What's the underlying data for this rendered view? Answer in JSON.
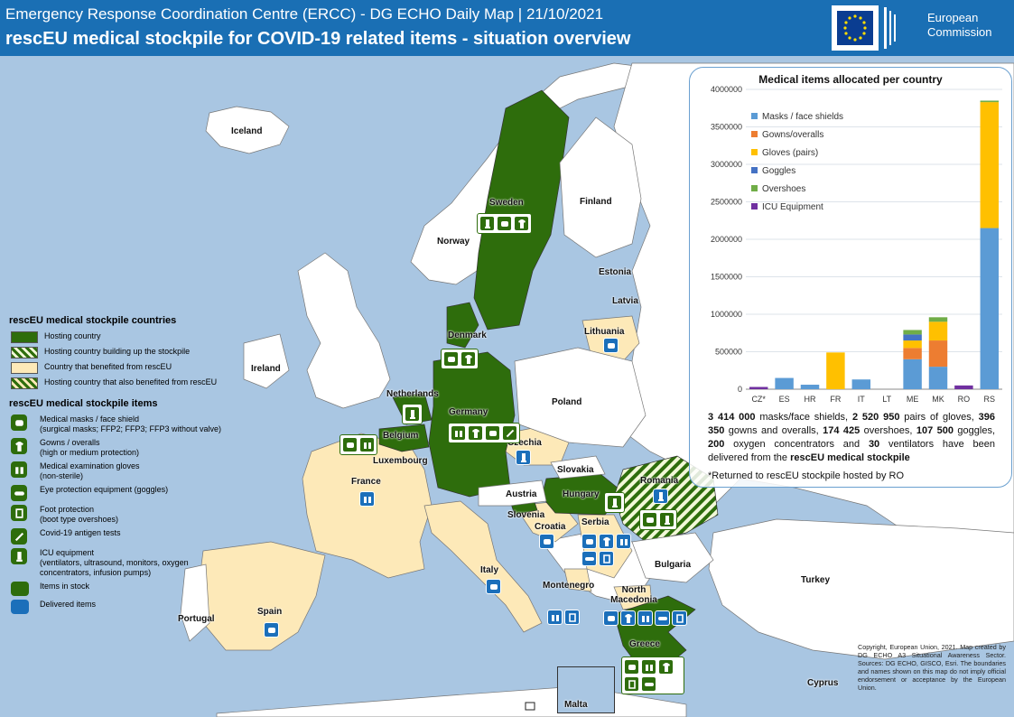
{
  "header": {
    "title": "Emergency Response Coordination Centre (ERCC) - DG ECHO Daily Map | 21/10/2021",
    "subtitle": "rescEU medical stockpile for COVID-19 related items - situation overview",
    "logo_line1": "European",
    "logo_line2": "Commission"
  },
  "colors": {
    "header_bg": "#1a6fb4",
    "sea": "#a9c6e2",
    "hosting": "#2e6d0c",
    "benefited": "#fde9b8",
    "in_stock": "#2e6d0c",
    "delivered": "#1b6fba",
    "non_eu": "#ffffff"
  },
  "countries": {
    "iceland": "Iceland",
    "norway": "Norway",
    "sweden": "Sweden",
    "finland": "Finland",
    "estonia": "Estonia",
    "latvia": "Latvia",
    "lithuania": "Lithuania",
    "denmark": "Denmark",
    "ireland": "Ireland",
    "netherlands": "Netherlands",
    "belgium": "Belgium",
    "luxembourg": "Luxembourg",
    "germany": "Germany",
    "poland": "Poland",
    "czechia": "Czechia",
    "slovakia": "Slovakia",
    "austria": "Austria",
    "hungary": "Hungary",
    "romania": "Romania",
    "slovenia": "Slovenia",
    "croatia": "Croatia",
    "serbia": "Serbia",
    "bulgaria": "Bulgaria",
    "france": "France",
    "spain": "Spain",
    "portugal": "Portugal",
    "italy": "Italy",
    "montenegro": "Montenegro",
    "north_macedonia": "North Macedonia",
    "greece": "Greece",
    "turkey": "Turkey",
    "cyprus": "Cyprus",
    "malta": "Malta"
  },
  "legend": {
    "title_countries": "rescEU medical stockpile countries",
    "hosting": "Hosting country",
    "hosting_building": "Hosting country building up the stockpile",
    "benefited": "Country that benefited from rescEU",
    "hosting_benefited": "Hosting country that also benefited from rescEU",
    "title_items": "rescEU medical stockpile items",
    "masks": "Medical masks / face shield",
    "masks_detail": "(surgical masks; FFP2; FFP3; FFP3 without valve)",
    "gowns": "Gowns / overalls",
    "gowns_detail": "(high or medium protection)",
    "gloves": "Medical examination gloves",
    "gloves_detail": "(non-sterile)",
    "goggles": "Eye protection equipment (goggles)",
    "foot": "Foot protection",
    "foot_detail": "(boot type overshoes)",
    "tests": "Covid-19 antigen tests",
    "icu": "ICU equipment",
    "icu_detail": "(ventilators, ultrasound, monitors, oxygen concentrators, infusion pumps)",
    "in_stock": "Items in stock",
    "delivered": "Delivered items"
  },
  "chart_data": {
    "type": "bar",
    "stacked": true,
    "title": "Medical items allocated per country",
    "categories": [
      "CZ*",
      "ES",
      "HR",
      "FR",
      "IT",
      "LT",
      "ME",
      "MK",
      "RO",
      "RS"
    ],
    "ylim": [
      0,
      4000000
    ],
    "yticks": [
      "0",
      "500000",
      "1000000",
      "1500000",
      "2000000",
      "2500000",
      "3000000",
      "3500000",
      "4000000"
    ],
    "legend_position": "top-left",
    "series": [
      {
        "name": "Masks / face shields",
        "color": "#5b9bd5",
        "values": [
          0,
          150000,
          60000,
          0,
          130000,
          0,
          400000,
          300000,
          0,
          2150000
        ]
      },
      {
        "name": "Gowns/overalls",
        "color": "#ed7d31",
        "values": [
          0,
          0,
          0,
          0,
          0,
          0,
          150000,
          350000,
          0,
          0
        ]
      },
      {
        "name": "Gloves (pairs)",
        "color": "#ffc000",
        "values": [
          0,
          0,
          0,
          490000,
          0,
          0,
          100000,
          250000,
          0,
          1680000
        ]
      },
      {
        "name": "Goggles",
        "color": "#4472c4",
        "values": [
          0,
          0,
          0,
          0,
          0,
          0,
          80000,
          0,
          0,
          0
        ]
      },
      {
        "name": "Overshoes",
        "color": "#70ad47",
        "values": [
          0,
          0,
          0,
          0,
          0,
          0,
          60000,
          60000,
          0,
          20000
        ]
      },
      {
        "name": "ICU Equipment",
        "color": "#7030a0",
        "values": [
          30000,
          0,
          0,
          0,
          0,
          0,
          0,
          0,
          50000,
          0
        ]
      }
    ]
  },
  "chart_summary": {
    "v1": "3 414 000",
    "t1": " masks/face shields, ",
    "v2": "2 520 950",
    "t2": " pairs of gloves, ",
    "v3": "396 350",
    "t3": " gowns and overalls, ",
    "v4": "174 425",
    "t4": " overshoes, ",
    "v5": "107 500",
    "t5": " goggles, ",
    "v6": "200",
    "t6": " oxygen concentrators and ",
    "v7": "30",
    "t7": " ventilators have been delivered from the ",
    "v8": "rescEU medical stockpile",
    "note": "*Returned to rescEU stockpile hosted by RO"
  },
  "copyright": "Copyright, European Union, 2021. Map created by DG ECHO A3 Situational Awareness Sector. Sources: DG ECHO, GISCO, Esri. The boundaries and names shown on this map do not imply official endorsement or acceptance by the European Union."
}
